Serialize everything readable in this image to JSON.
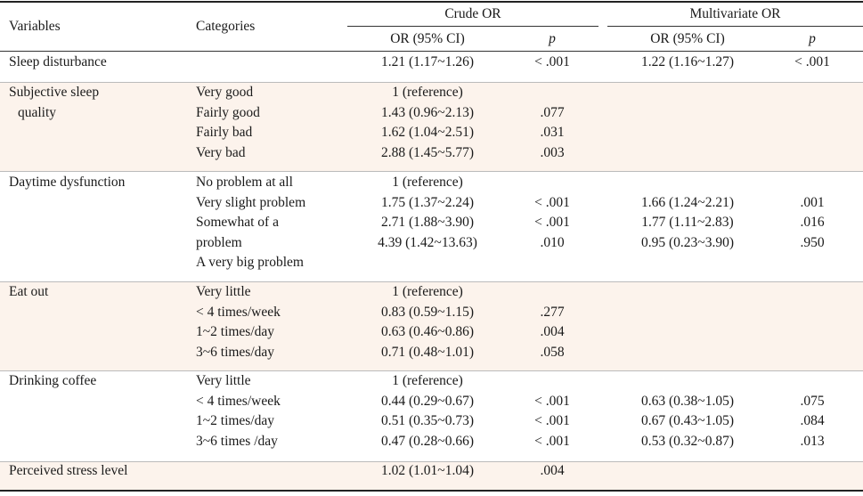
{
  "header": {
    "variables": "Variables",
    "categories": "Categories",
    "crude_or": "Crude OR",
    "multivariate_or": "Multivariate OR",
    "or_ci": "OR (95% CI)",
    "p": "p"
  },
  "rows": [
    {
      "variable": [
        "Sleep disturbance"
      ],
      "categories": [
        ""
      ],
      "crude_or": [
        "1.21 (1.17~1.26)"
      ],
      "crude_p": [
        "< .001"
      ],
      "multi_or": [
        "1.22 (1.16~1.27)"
      ],
      "multi_p": [
        "< .001"
      ]
    },
    {
      "variable": [
        "Subjective sleep",
        "quality"
      ],
      "categories": [
        "Very good",
        "Fairly good",
        "Fairly bad",
        "Very bad"
      ],
      "crude_or": [
        "1 (reference)",
        "1.43 (0.96~2.13)",
        "1.62 (1.04~2.51)",
        "2.88 (1.45~5.77)"
      ],
      "crude_p": [
        "",
        ".077",
        ".031",
        ".003"
      ],
      "multi_or": [
        "",
        "",
        "",
        ""
      ],
      "multi_p": [
        "",
        "",
        "",
        ""
      ]
    },
    {
      "variable": [
        "Daytime dysfunction"
      ],
      "categories": [
        "No problem at all",
        "Very slight problem",
        "Somewhat of a",
        "problem",
        "A very big problem"
      ],
      "crude_or": [
        "1 (reference)",
        "1.75 (1.37~2.24)",
        "2.71 (1.88~3.90)",
        "4.39 (1.42~13.63)",
        ""
      ],
      "crude_p": [
        "",
        "< .001",
        "< .001",
        ".010",
        ""
      ],
      "multi_or": [
        "",
        "1.66 (1.24~2.21)",
        "1.77 (1.11~2.83)",
        "0.95 (0.23~3.90)",
        ""
      ],
      "multi_p": [
        "",
        ".001",
        ".016",
        ".950",
        ""
      ]
    },
    {
      "variable": [
        "Eat out"
      ],
      "categories": [
        "Very little",
        "< 4 times/week",
        "1~2 times/day",
        "3~6 times/day"
      ],
      "crude_or": [
        "1 (reference)",
        "0.83 (0.59~1.15)",
        "0.63 (0.46~0.86)",
        "0.71 (0.48~1.01)"
      ],
      "crude_p": [
        "",
        ".277",
        ".004",
        ".058"
      ],
      "multi_or": [
        "",
        "",
        "",
        ""
      ],
      "multi_p": [
        "",
        "",
        "",
        ""
      ]
    },
    {
      "variable": [
        "Drinking coffee"
      ],
      "categories": [
        "Very little",
        "< 4 times/week",
        "1~2 times/day",
        "3~6 times /day"
      ],
      "crude_or": [
        "1 (reference)",
        "0.44 (0.29~0.67)",
        "0.51 (0.35~0.73)",
        "0.47 (0.28~0.66)"
      ],
      "crude_p": [
        "",
        "< .001",
        "< .001",
        "< .001"
      ],
      "multi_or": [
        "",
        "0.63 (0.38~1.05)",
        "0.67 (0.43~1.05)",
        "0.53 (0.32~0.87)"
      ],
      "multi_p": [
        "",
        ".075",
        ".084",
        ".013"
      ]
    },
    {
      "variable": [
        "Perceived stress level"
      ],
      "categories": [
        ""
      ],
      "crude_or": [
        "1.02 (1.01~1.04)"
      ],
      "crude_p": [
        ".004"
      ],
      "multi_or": [
        ""
      ],
      "multi_p": [
        ""
      ]
    }
  ]
}
